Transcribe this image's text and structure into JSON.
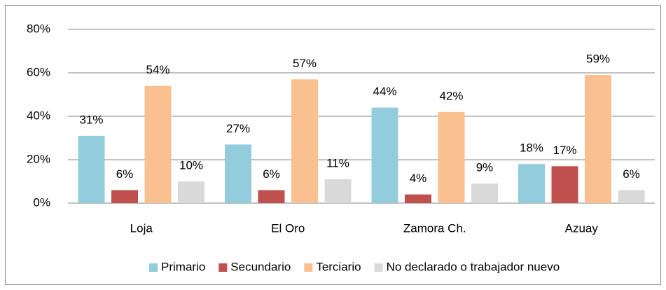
{
  "chart_data": {
    "type": "bar",
    "categories": [
      "Loja",
      "El Oro",
      "Zamora Ch.",
      "Azuay"
    ],
    "series": [
      {
        "name": "Primario",
        "color": "#93cddd",
        "values": [
          31,
          27,
          44,
          18
        ],
        "value_labels": [
          "31%",
          "27%",
          "44%",
          "18%"
        ]
      },
      {
        "name": "Secundario",
        "color": "#c0504d",
        "values": [
          6,
          6,
          4,
          17
        ],
        "value_labels": [
          "6%",
          "6%",
          "4%",
          "17%"
        ]
      },
      {
        "name": "Terciario",
        "color": "#fac090",
        "values": [
          54,
          57,
          42,
          59
        ],
        "value_labels": [
          "54%",
          "57%",
          "42%",
          "59%"
        ]
      },
      {
        "name": "No declarado o trabajador nuevo",
        "color": "#d9d9d9",
        "values": [
          10,
          11,
          9,
          6
        ],
        "value_labels": [
          "10%",
          "11%",
          "9%",
          "6%"
        ]
      }
    ],
    "ylim": [
      0,
      80
    ],
    "yticks": [
      {
        "value": 0,
        "label": "0%"
      },
      {
        "value": 20,
        "label": "20%"
      },
      {
        "value": 40,
        "label": "40%"
      },
      {
        "value": 60,
        "label": "60%"
      },
      {
        "value": 80,
        "label": "80%"
      }
    ],
    "grid": true,
    "legend": "bottom"
  }
}
